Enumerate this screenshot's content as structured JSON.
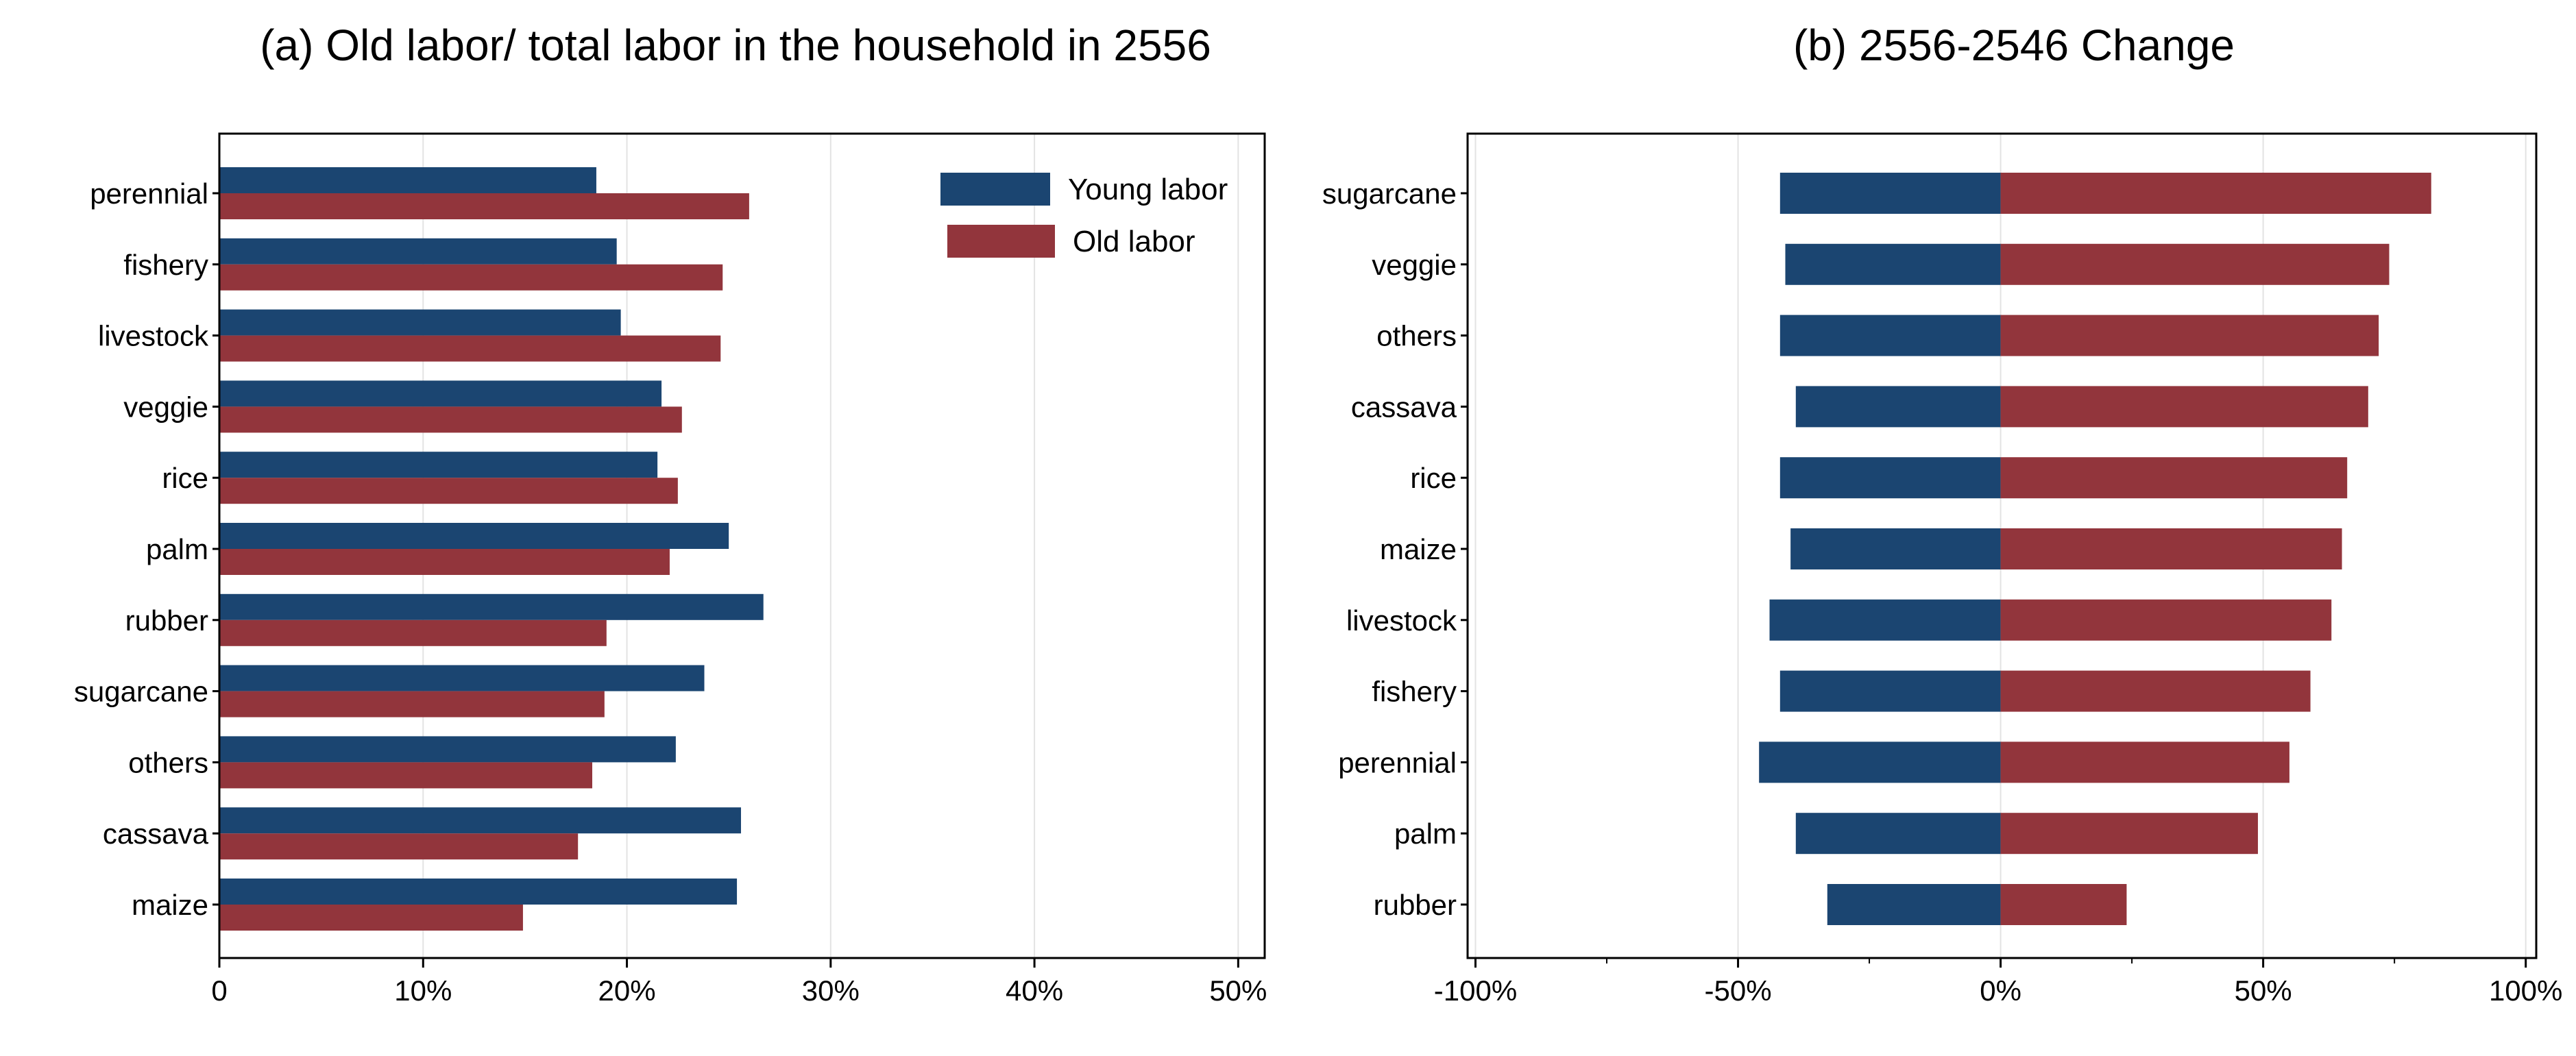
{
  "colors": {
    "young": "#1b4571",
    "old": "#92353c"
  },
  "chart_data": [
    {
      "type": "bar",
      "orientation": "horizontal",
      "title": "(a) Old labor/ total labor in the household in 2556",
      "categories": [
        "perennial",
        "fishery",
        "livestock",
        "veggie",
        "rice",
        "palm",
        "rubber",
        "sugarcane",
        "others",
        "cassava",
        "maize"
      ],
      "series": [
        {
          "name": "Young labor",
          "values": [
            18.5,
            19.5,
            19.7,
            21.7,
            21.5,
            25.0,
            26.7,
            23.8,
            22.4,
            25.6,
            25.4
          ]
        },
        {
          "name": "Old labor",
          "values": [
            26.0,
            24.7,
            24.6,
            22.7,
            22.5,
            22.1,
            19.0,
            18.9,
            18.3,
            17.6,
            14.9
          ]
        }
      ],
      "xlim": [
        0,
        51.3
      ],
      "xticks": [
        0,
        10,
        20,
        30,
        40,
        50
      ],
      "xtick_labels": [
        "0",
        "10%",
        "20%",
        "30%",
        "40%",
        "50%"
      ],
      "grid": true,
      "legend_position": "top-right"
    },
    {
      "type": "bar",
      "orientation": "horizontal",
      "stacked": "diverging",
      "title": "(b) 2556-2546 Change",
      "categories": [
        "sugarcane",
        "veggie",
        "others",
        "cassava",
        "rice",
        "maize",
        "livestock",
        "fishery",
        "perennial",
        "palm",
        "rubber"
      ],
      "series": [
        {
          "name": "Young labor",
          "values": [
            -42,
            -41,
            -42,
            -39,
            -42,
            -40,
            -44,
            -42,
            -46,
            -39,
            -33
          ]
        },
        {
          "name": "Old labor",
          "values": [
            82,
            74,
            72,
            70,
            66,
            65,
            63,
            59,
            55,
            49,
            24
          ]
        }
      ],
      "xlim": [
        -101.5,
        102
      ],
      "xticks": [
        -100,
        -50,
        0,
        50,
        100
      ],
      "xtick_labels": [
        "-100%",
        "-50%",
        "0%",
        "50%",
        "100%"
      ],
      "minor_xticks": [
        -75,
        -25,
        25,
        75
      ],
      "grid": true
    }
  ]
}
